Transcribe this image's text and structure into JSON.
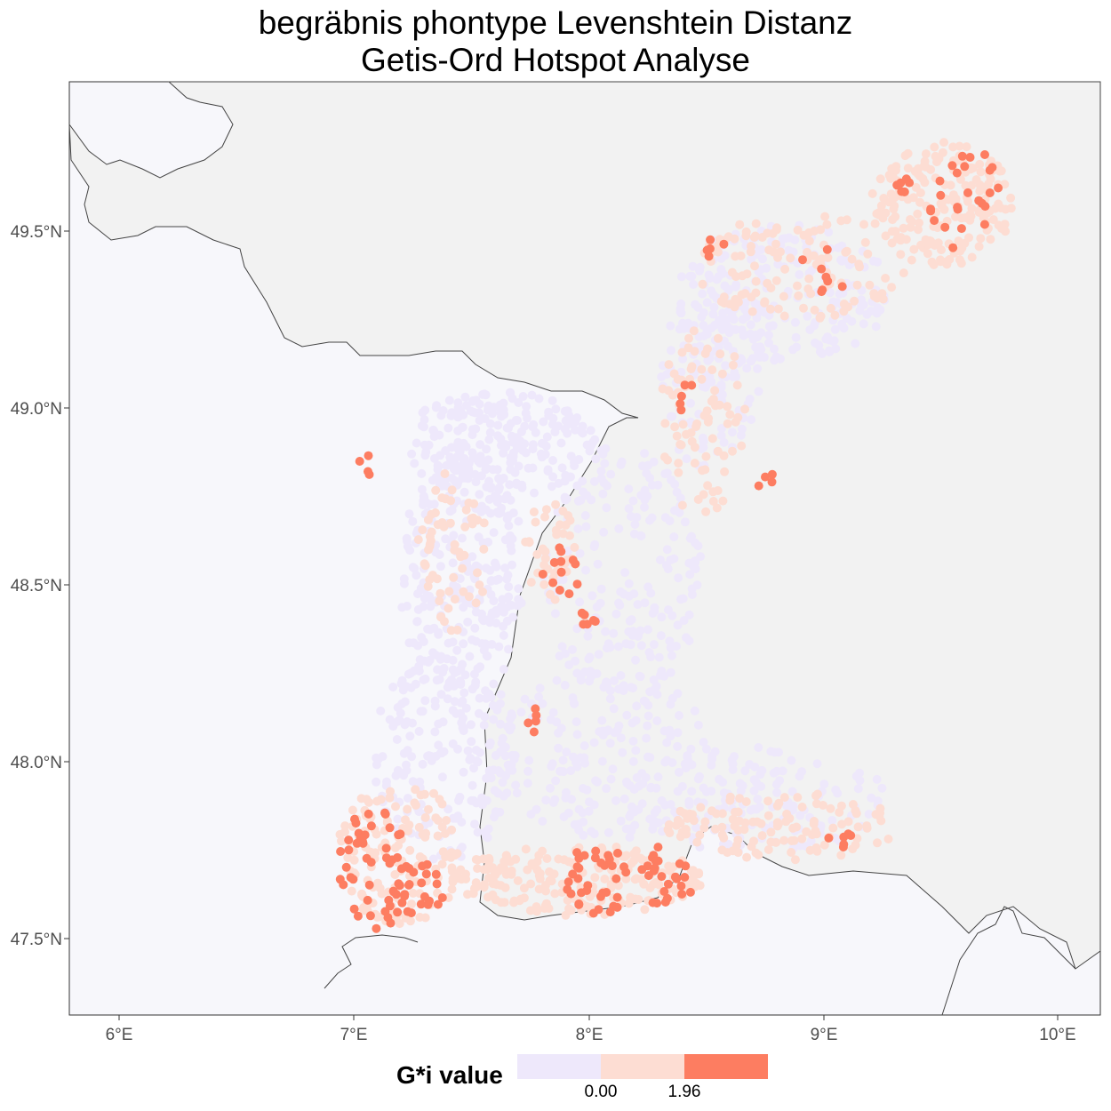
{
  "title": {
    "line1": "begräbnis phontype Levenshtein Distanz",
    "line2": "Getis-Ord Hotspot Analyse"
  },
  "axes": {
    "x_ticks": [
      "6°E",
      "7°E",
      "8°E",
      "9°E",
      "10°E"
    ],
    "y_ticks": [
      "47.5°N",
      "48.0°N",
      "48.5°N",
      "49.0°N",
      "49.5°N"
    ]
  },
  "legend": {
    "title": "G*i value",
    "labels": [
      "0.00",
      "1.96"
    ],
    "colors": [
      "#EEE8FB",
      "#FDDDD3",
      "#FD7D61"
    ]
  },
  "colors": {
    "panel": "#F7F7FB",
    "region": "#F2F2F2",
    "border": "#444444",
    "low": "#EEE8FB",
    "mid": "#FDDDD3",
    "high": "#FD7D61"
  }
}
